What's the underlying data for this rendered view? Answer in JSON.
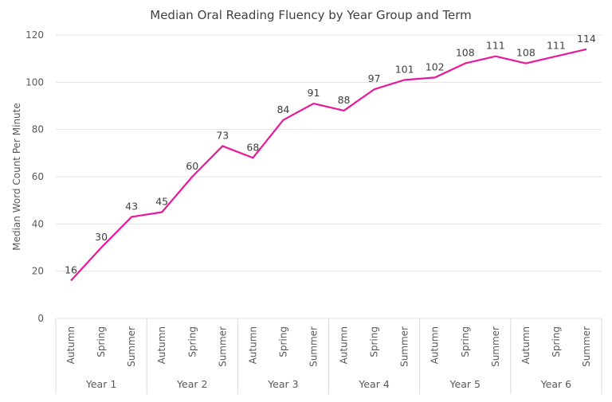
{
  "chart_data": {
    "type": "line",
    "title": "Median Oral Reading Fluency by Year Group and Term",
    "xlabel": "",
    "ylabel": "Median Word Count Per Minute",
    "ylim": [
      0,
      120
    ],
    "yticks": [
      0,
      20,
      40,
      60,
      80,
      100,
      120
    ],
    "grid": true,
    "groups": [
      "Year 1",
      "Year 2",
      "Year 3",
      "Year 4",
      "Year 5",
      "Year 6"
    ],
    "terms": [
      "Autumn",
      "Spring",
      "Summer"
    ],
    "series": [
      {
        "values": [
          16,
          30,
          43,
          45,
          60,
          73,
          68,
          84,
          91,
          88,
          97,
          101,
          102,
          108,
          111,
          108,
          111,
          114
        ],
        "color": "#E8189A"
      }
    ],
    "data_labels": true
  }
}
